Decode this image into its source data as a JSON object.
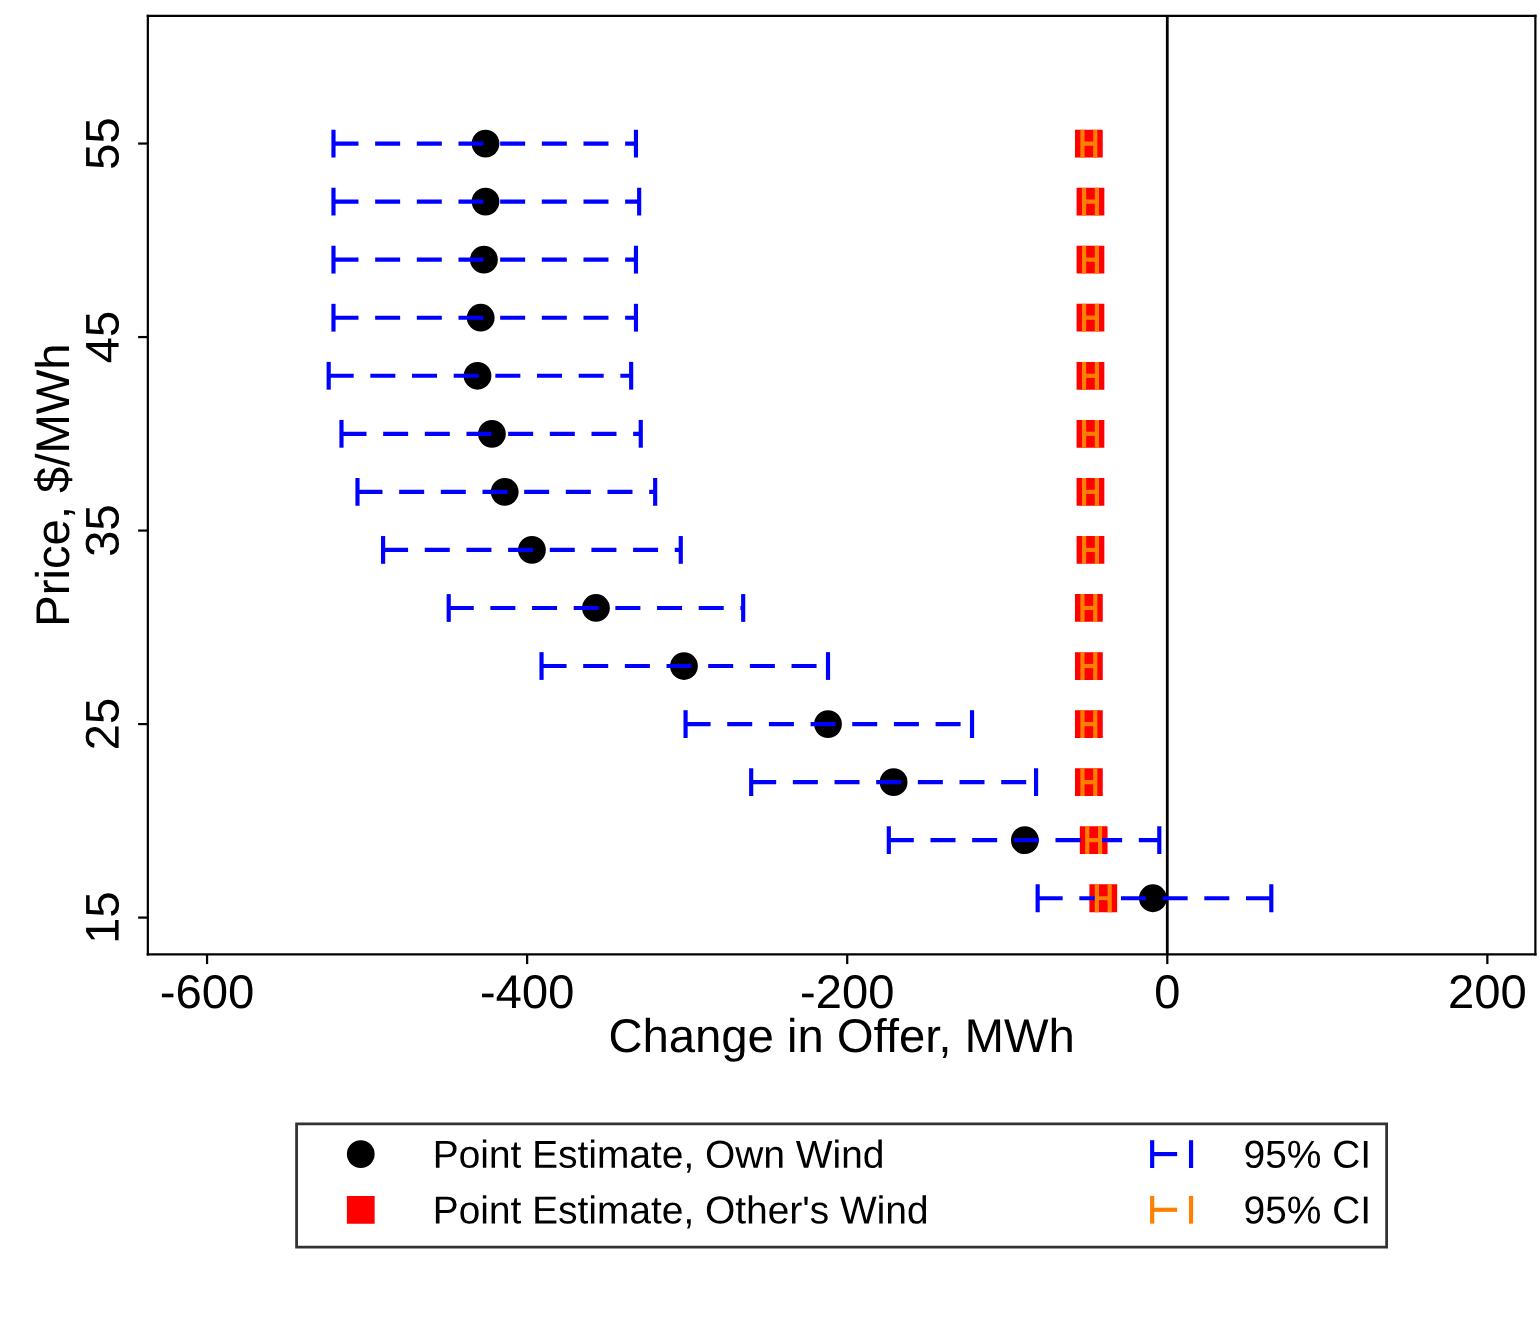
{
  "chart_data": {
    "type": "scatter",
    "xlabel": "Change in Offer, MWh",
    "ylabel": "Price, $/MWh",
    "xlim": [
      -637,
      230
    ],
    "xticks": [
      -600,
      -400,
      -200,
      0,
      200
    ],
    "ylim": [
      13.1,
      61.6
    ],
    "yticks": [
      15,
      25,
      35,
      45,
      55
    ],
    "grid": false,
    "legend": "bottom",
    "line_style": "dashed",
    "annotations": [
      "95% CI",
      "95% CI"
    ],
    "ref_lines": [
      {
        "axis": "x",
        "value": 0,
        "color": "#000000",
        "line_style": "solid"
      }
    ],
    "series": [
      {
        "name": "Point Estimate, Own Wind",
        "color": "#000000",
        "marker": "circle",
        "x": [
          -426,
          -426,
          -427,
          -429,
          -431,
          -422,
          -414,
          -397,
          -357,
          -302,
          -212,
          -171,
          -89,
          -9
        ],
        "values": [
          55,
          52,
          49,
          46,
          43,
          40,
          37,
          34,
          31,
          28,
          25,
          22,
          19,
          16
        ],
        "xerrors": [
          [
            -521,
            -332
          ],
          [
            -521,
            -330
          ],
          [
            -521,
            -332
          ],
          [
            -521,
            -332
          ],
          [
            -524,
            -335
          ],
          [
            -516,
            -329
          ],
          [
            -506,
            -320
          ],
          [
            -490,
            -304
          ],
          [
            -449,
            -265
          ],
          [
            -391,
            -212
          ],
          [
            -301,
            -122
          ],
          [
            -260,
            -82
          ],
          [
            -174,
            -5
          ],
          [
            -81,
            65
          ]
        ]
      },
      {
        "name": "Point Estimate, Other's Wind",
        "color": "#ff0000",
        "marker": "square",
        "x": [
          -49,
          -48,
          -48,
          -48,
          -48,
          -48,
          -48,
          -48,
          -49,
          -49,
          -49,
          -49,
          -46,
          -40
        ],
        "values": [
          55,
          52,
          49,
          46,
          43,
          40,
          37,
          34,
          31,
          28,
          25,
          22,
          19,
          16
        ],
        "xerrors": [
          [
            -53,
            -45
          ],
          [
            -52,
            -44
          ],
          [
            -52,
            -44
          ],
          [
            -52,
            -44
          ],
          [
            -52,
            -44
          ],
          [
            -52,
            -44
          ],
          [
            -52,
            -44
          ],
          [
            -52,
            -44
          ],
          [
            -53,
            -45
          ],
          [
            -53,
            -45
          ],
          [
            -53,
            -45
          ],
          [
            -53,
            -45
          ],
          [
            -50,
            -42
          ],
          [
            -44,
            -36
          ]
        ]
      }
    ]
  }
}
